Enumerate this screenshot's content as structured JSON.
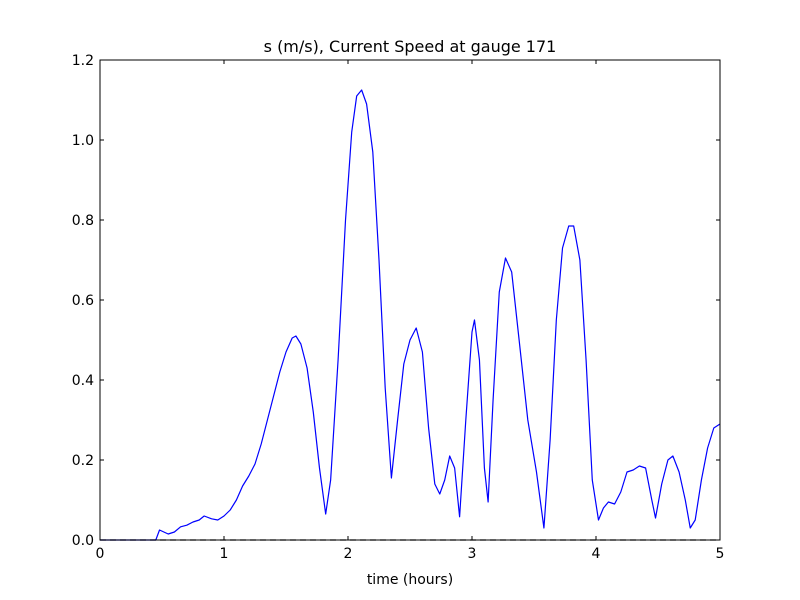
{
  "chart_data": {
    "type": "line",
    "title": "s (m/s), Current Speed at gauge 171",
    "xlabel": "time (hours)",
    "xlim": [
      0,
      5
    ],
    "ylim": [
      0,
      1.2
    ],
    "xticks": [
      0,
      1,
      2,
      3,
      4,
      5
    ],
    "yticks": [
      {
        "value": 0,
        "label": "0.0"
      },
      {
        "value": 0.2,
        "label": "0.2"
      },
      {
        "value": 0.4,
        "label": "0.4"
      },
      {
        "value": 0.6,
        "label": "0.6"
      },
      {
        "value": 0.8,
        "label": "0.8"
      },
      {
        "value": 1.0,
        "label": "1.0"
      },
      {
        "value": 1.2,
        "label": "1.2"
      }
    ],
    "series": [
      {
        "color": "#0000ff",
        "dashed": false,
        "x": [
          0,
          0.4,
          0.45,
          0.48,
          0.55,
          0.6,
          0.65,
          0.7,
          0.75,
          0.8,
          0.84,
          0.9,
          0.95,
          1.0,
          1.05,
          1.1,
          1.15,
          1.2,
          1.25,
          1.3,
          1.35,
          1.4,
          1.45,
          1.5,
          1.55,
          1.58,
          1.62,
          1.67,
          1.72,
          1.77,
          1.82,
          1.86,
          1.92,
          1.98,
          2.03,
          2.07,
          2.11,
          2.15,
          2.2,
          2.25,
          2.3,
          2.35,
          2.4,
          2.45,
          2.5,
          2.55,
          2.6,
          2.65,
          2.7,
          2.74,
          2.78,
          2.82,
          2.86,
          2.9,
          2.95,
          3.0,
          3.02,
          3.06,
          3.1,
          3.13,
          3.17,
          3.22,
          3.27,
          3.32,
          3.38,
          3.45,
          3.52,
          3.58,
          3.63,
          3.68,
          3.73,
          3.78,
          3.82,
          3.87,
          3.92,
          3.97,
          4.02,
          4.06,
          4.1,
          4.15,
          4.2,
          4.25,
          4.3,
          4.35,
          4.4,
          4.45,
          4.48,
          4.53,
          4.58,
          4.62,
          4.67,
          4.72,
          4.76,
          4.8,
          4.85,
          4.9,
          4.95,
          5.0
        ],
        "values": [
          0,
          0,
          0,
          0.025,
          0.015,
          0.02,
          0.033,
          0.037,
          0.045,
          0.05,
          0.06,
          0.053,
          0.05,
          0.06,
          0.075,
          0.1,
          0.135,
          0.16,
          0.19,
          0.24,
          0.3,
          0.36,
          0.42,
          0.47,
          0.505,
          0.51,
          0.49,
          0.43,
          0.32,
          0.18,
          0.065,
          0.15,
          0.45,
          0.8,
          1.02,
          1.11,
          1.125,
          1.09,
          0.97,
          0.7,
          0.38,
          0.155,
          0.3,
          0.44,
          0.5,
          0.53,
          0.47,
          0.28,
          0.14,
          0.115,
          0.15,
          0.21,
          0.18,
          0.058,
          0.3,
          0.52,
          0.55,
          0.45,
          0.18,
          0.095,
          0.35,
          0.62,
          0.705,
          0.67,
          0.5,
          0.3,
          0.17,
          0.03,
          0.25,
          0.55,
          0.73,
          0.785,
          0.785,
          0.7,
          0.45,
          0.15,
          0.05,
          0.08,
          0.095,
          0.09,
          0.12,
          0.17,
          0.175,
          0.185,
          0.18,
          0.1,
          0.055,
          0.14,
          0.2,
          0.21,
          0.17,
          0.1,
          0.03,
          0.05,
          0.15,
          0.23,
          0.28,
          0.29
        ]
      },
      {
        "color": "#000000",
        "dashed": true,
        "x": [
          0,
          5
        ],
        "values": [
          0,
          0
        ]
      }
    ]
  }
}
